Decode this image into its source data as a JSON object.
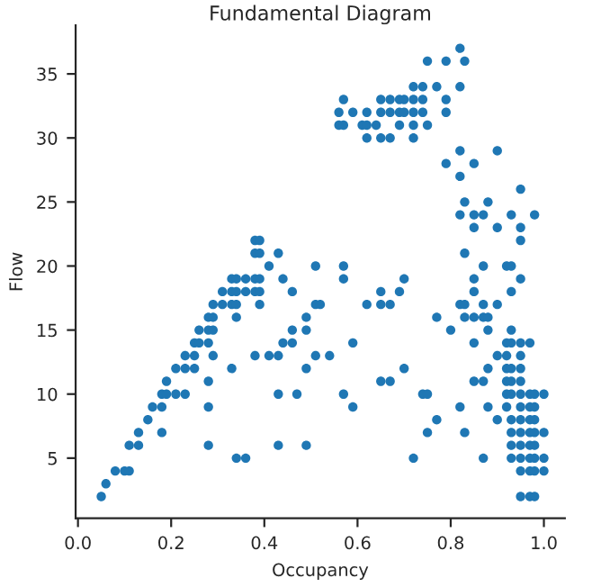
{
  "chart_data": {
    "type": "scatter",
    "title": "Fundamental Diagram",
    "xlabel": "Occupancy",
    "ylabel": "Flow",
    "x": [
      0.05,
      0.06,
      0.08,
      0.1,
      0.11,
      0.11,
      0.13,
      0.13,
      0.18,
      0.15,
      0.16,
      0.18,
      0.18,
      0.19,
      0.21,
      0.23,
      0.19,
      0.21,
      0.23,
      0.25,
      0.23,
      0.25,
      0.25,
      0.26,
      0.28,
      0.26,
      0.28,
      0.29,
      0.28,
      0.29,
      0.29,
      0.31,
      0.33,
      0.34,
      0.31,
      0.33,
      0.34,
      0.36,
      0.38,
      0.39,
      0.33,
      0.34,
      0.36,
      0.38,
      0.39,
      0.38,
      0.39,
      0.38,
      0.39,
      0.41,
      0.43,
      0.39,
      0.34,
      0.29,
      0.33,
      0.28,
      0.28,
      0.28,
      0.38,
      0.34,
      0.36,
      0.41,
      0.43,
      0.43,
      0.43,
      0.44,
      0.46,
      0.44,
      0.46,
      0.46,
      0.47,
      0.49,
      0.49,
      0.49,
      0.49,
      0.51,
      0.51,
      0.52,
      0.51,
      0.95,
      0.83,
      0.57,
      0.87,
      0.92,
      0.93,
      0.57,
      0.7,
      0.85,
      0.95,
      0.65,
      0.69,
      0.85,
      0.93,
      0.62,
      0.65,
      0.67,
      0.82,
      0.83,
      0.87,
      0.9,
      0.77,
      0.83,
      0.85,
      0.87,
      0.88,
      0.8,
      0.88,
      0.93,
      0.59,
      0.85,
      0.92,
      0.93,
      0.95,
      0.97,
      0.54,
      0.9,
      0.92,
      0.95,
      0.7,
      0.88,
      0.92,
      0.93,
      0.95,
      0.65,
      0.67,
      0.85,
      0.87,
      0.92,
      0.93,
      0.95,
      0.57,
      0.74,
      0.75,
      0.92,
      0.93,
      0.95,
      0.97,
      0.98,
      1.0,
      0.59,
      0.82,
      0.88,
      0.92,
      0.95,
      0.97,
      0.98,
      0.77,
      0.9,
      0.93,
      0.95,
      0.97,
      0.98,
      0.75,
      0.83,
      0.93,
      0.95,
      0.97,
      0.98,
      1.0,
      0.93,
      0.95,
      0.97,
      0.98,
      0.72,
      0.87,
      0.93,
      0.95,
      0.97,
      0.98,
      1.0,
      0.95,
      0.97,
      0.98,
      1.0,
      0.95,
      0.97,
      0.98,
      0.82,
      0.75,
      0.79,
      0.83,
      0.72,
      0.74,
      0.77,
      0.82,
      0.57,
      0.65,
      0.67,
      0.69,
      0.7,
      0.72,
      0.74,
      0.79,
      0.56,
      0.59,
      0.62,
      0.65,
      0.67,
      0.69,
      0.7,
      0.72,
      0.74,
      0.79,
      0.56,
      0.57,
      0.61,
      0.62,
      0.64,
      0.69,
      0.72,
      0.75,
      0.62,
      0.65,
      0.67,
      0.72,
      0.82,
      0.9,
      0.79,
      0.85,
      0.82,
      0.95,
      0.83,
      0.88,
      0.82,
      0.85,
      0.87,
      0.93,
      0.98,
      0.85,
      0.9,
      0.95
    ],
    "values": [
      2,
      3,
      4,
      4,
      4,
      6,
      6,
      7,
      7,
      8,
      9,
      9,
      10,
      10,
      10,
      10,
      11,
      12,
      12,
      12,
      13,
      13,
      14,
      14,
      14,
      15,
      15,
      15,
      16,
      16,
      17,
      17,
      17,
      17,
      18,
      18,
      18,
      18,
      18,
      18,
      19,
      19,
      19,
      19,
      19,
      21,
      21,
      22,
      22,
      20,
      21,
      17,
      16,
      13,
      12,
      11,
      9,
      6,
      13,
      5,
      5,
      13,
      13,
      10,
      6,
      19,
      18,
      14,
      14,
      15,
      10,
      16,
      15,
      12,
      6,
      20,
      17,
      17,
      13,
      22,
      21,
      20,
      20,
      20,
      20,
      19,
      19,
      19,
      19,
      18,
      18,
      18,
      18,
      17,
      17,
      17,
      17,
      17,
      17,
      17,
      16,
      16,
      16,
      16,
      16,
      15,
      15,
      15,
      14,
      14,
      14,
      14,
      14,
      14,
      13,
      13,
      13,
      13,
      12,
      12,
      12,
      12,
      12,
      11,
      11,
      11,
      11,
      11,
      11,
      11,
      10,
      10,
      10,
      10,
      10,
      10,
      10,
      10,
      10,
      9,
      9,
      9,
      9,
      9,
      9,
      9,
      8,
      8,
      8,
      8,
      8,
      8,
      7,
      7,
      7,
      7,
      7,
      7,
      7,
      6,
      6,
      6,
      6,
      5,
      5,
      5,
      5,
      5,
      5,
      5,
      4,
      4,
      4,
      4,
      2,
      2,
      2,
      37,
      36,
      36,
      36,
      34,
      34,
      34,
      34,
      33,
      33,
      33,
      33,
      33,
      33,
      33,
      33,
      32,
      32,
      32,
      32,
      32,
      32,
      32,
      32,
      32,
      32,
      31,
      31,
      31,
      31,
      31,
      31,
      31,
      31,
      30,
      30,
      30,
      30,
      29,
      29,
      28,
      28,
      27,
      26,
      25,
      25,
      24,
      24,
      24,
      24,
      24,
      23,
      23,
      23
    ],
    "color": "#1f77b4",
    "marker": "circle",
    "xlim": [
      -0.005,
      1.045
    ],
    "ylim": [
      0.3,
      38.8
    ],
    "xticks": [
      {
        "value": 0,
        "label": "0.0"
      },
      {
        "value": 0.2,
        "label": "0.2"
      },
      {
        "value": 0.4,
        "label": "0.4"
      },
      {
        "value": 0.6,
        "label": "0.6"
      },
      {
        "value": 0.8,
        "label": "0.8"
      },
      {
        "value": 1,
        "label": "1.0"
      }
    ],
    "yticks": [
      5,
      10,
      15,
      20,
      25,
      30,
      35
    ],
    "grid": false
  }
}
